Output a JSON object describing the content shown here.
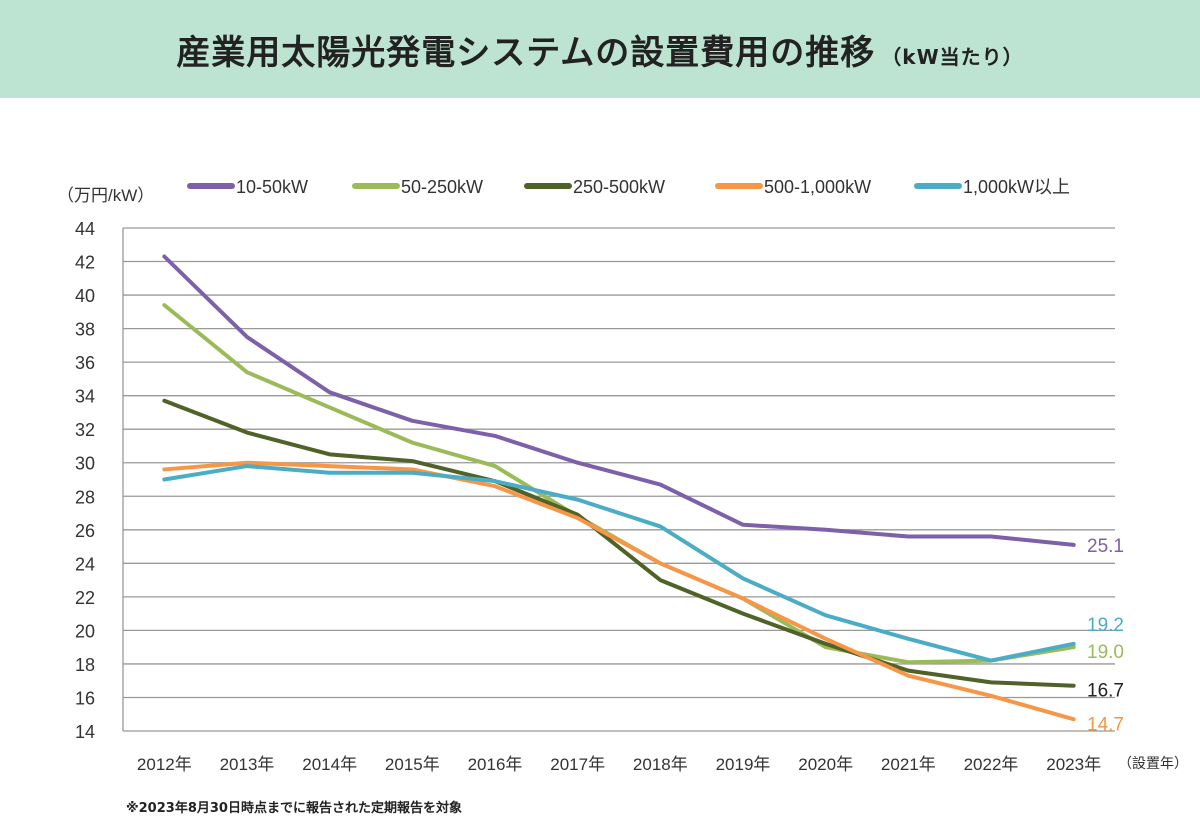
{
  "header": {
    "title": "産業用太陽光発電システムの設置費用の推移",
    "subtitle": "（kW当たり）"
  },
  "chart_data": {
    "type": "line",
    "title": "産業用太陽光発電システムの設置費用の推移（kW当たり）",
    "ylabel": "（万円/kW）",
    "xlabel": "（設置年）",
    "ylim": [
      14,
      44
    ],
    "yticks": [
      14,
      16,
      18,
      20,
      22,
      24,
      26,
      28,
      30,
      32,
      34,
      36,
      38,
      40,
      42,
      44
    ],
    "grid": true,
    "legend": "top",
    "categories": [
      "2012年",
      "2013年",
      "2014年",
      "2015年",
      "2016年",
      "2017年",
      "2018年",
      "2019年",
      "2020年",
      "2021年",
      "2022年",
      "2023年"
    ],
    "series": [
      {
        "name": "10-50kW",
        "color": "#7d60a8",
        "values": [
          42.3,
          37.5,
          34.2,
          32.5,
          31.6,
          30.0,
          28.7,
          26.3,
          26.0,
          25.6,
          25.6,
          25.1
        ],
        "end_label": "25.1"
      },
      {
        "name": "50-250kW",
        "color": "#9bbb59",
        "values": [
          39.4,
          35.4,
          33.3,
          31.2,
          29.8,
          26.8,
          24.0,
          21.9,
          19.0,
          18.1,
          18.2,
          19.0
        ],
        "end_label": "19.0"
      },
      {
        "name": "250-500kW",
        "color": "#4f6228",
        "values": [
          33.7,
          31.8,
          30.5,
          30.1,
          28.9,
          26.9,
          23.0,
          21.0,
          19.2,
          17.6,
          16.9,
          16.7
        ],
        "end_label": "16.7"
      },
      {
        "name": "500-1,000kW",
        "color": "#f79646",
        "values": [
          29.6,
          30.0,
          29.8,
          29.6,
          28.6,
          26.7,
          24.0,
          21.9,
          19.5,
          17.3,
          16.1,
          14.7
        ],
        "end_label": "14.7"
      },
      {
        "name": "1,000kW以上",
        "color": "#4bacc6",
        "values": [
          29.0,
          29.8,
          29.4,
          29.4,
          28.9,
          27.8,
          26.2,
          23.1,
          20.9,
          19.5,
          18.2,
          19.2
        ],
        "end_label": "19.2"
      }
    ],
    "end_label_colors": [
      "#7d60a8",
      "#9bbb59",
      "#222222",
      "#f79646",
      "#4bacc6"
    ]
  },
  "footnote": "※2023年8月30日時点までに報告された定期報告を対象"
}
